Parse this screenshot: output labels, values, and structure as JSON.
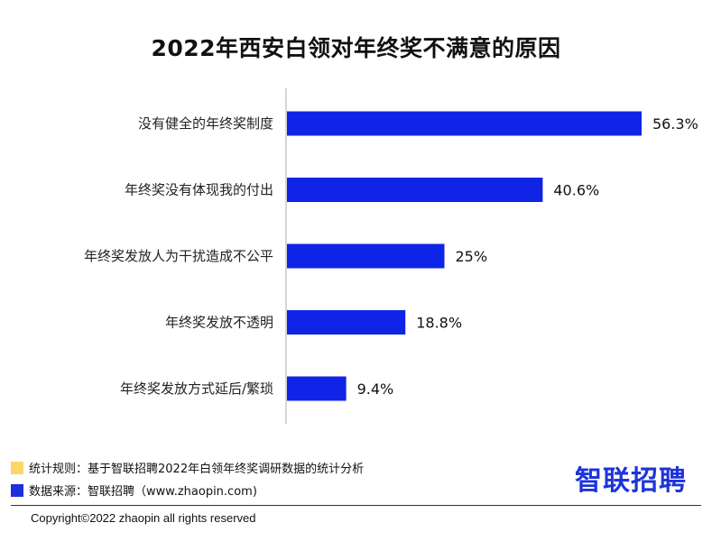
{
  "colors": {
    "bar": "#0F24E6",
    "rule_swatch": "#FDD66A",
    "source_swatch": "#1F2EE0",
    "logo": "#1E34D8"
  },
  "chart_data": {
    "type": "bar",
    "orientation": "horizontal",
    "title": "2022年西安白领对年终奖不满意的原因",
    "categories": [
      "没有健全的年终奖制度",
      "年终奖没有体现我的付出",
      "年终奖发放人为干扰造成不公平",
      "年终奖发放不透明",
      "年终奖发放方式延后/繁琐"
    ],
    "values": [
      56.3,
      40.6,
      25,
      18.8,
      9.4
    ],
    "value_labels": [
      "56.3%",
      "40.6%",
      "25%",
      "18.8%",
      "9.4%"
    ],
    "xlim": [
      0,
      60
    ],
    "grid": false
  },
  "footer": {
    "rule_text": "统计规则：基于智联招聘2022年白领年终奖调研数据的统计分析",
    "source_text": "数据来源：智联招聘（www.zhaopin.com)",
    "logo_text": "智联招聘",
    "copyright": "Copyright©2022 zhaopin all rights reserved"
  }
}
